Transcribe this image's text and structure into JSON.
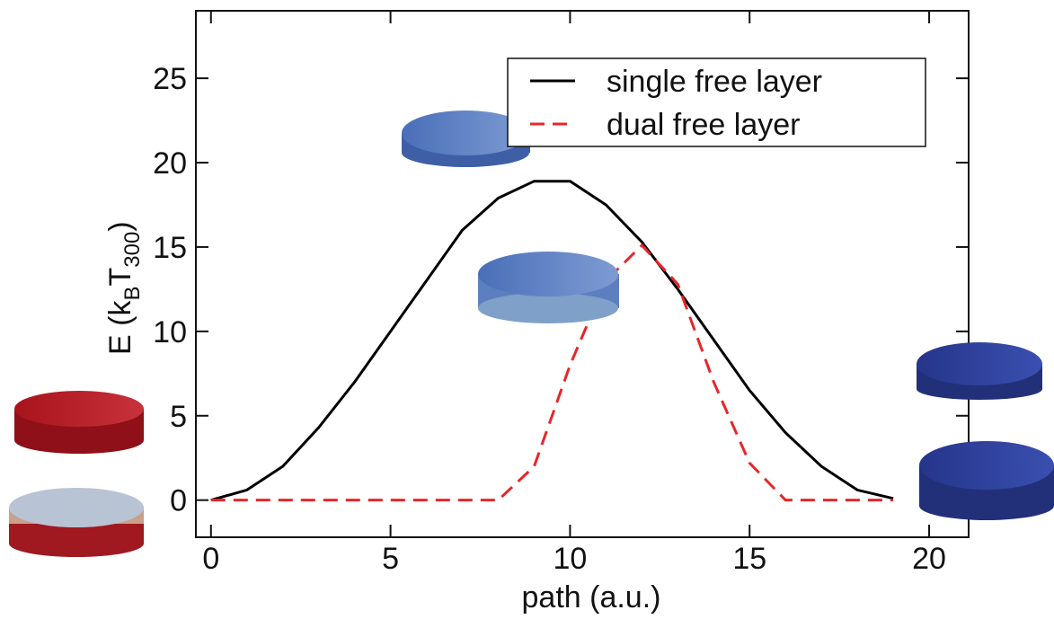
{
  "chart_data": {
    "type": "line",
    "xlabel": "path (a.u.)",
    "ylabel": [
      "E (k",
      "B",
      "T",
      "300",
      ")"
    ],
    "x": [
      0,
      1,
      2,
      3,
      4,
      5,
      6,
      7,
      8,
      9,
      10,
      11,
      12,
      13,
      14,
      15,
      16,
      17,
      18,
      19
    ],
    "series": [
      {
        "name": "single free layer",
        "color": "#000000",
        "dash": false,
        "values": [
          0,
          0.6,
          2,
          4.3,
          7,
          10,
          13,
          16,
          17.9,
          18.9,
          18.9,
          17.5,
          15.3,
          12.5,
          9.5,
          6.5,
          4,
          2,
          0.6,
          0.1
        ]
      },
      {
        "name": "dual free layer",
        "color": "#e8262a",
        "dash": true,
        "values": [
          0,
          0,
          0,
          0,
          0,
          0,
          0,
          0,
          0,
          2,
          8,
          13,
          15.1,
          12.8,
          7,
          2.2,
          0,
          0,
          0,
          0
        ]
      }
    ],
    "xlim": [
      -0.42,
      21.1
    ],
    "ylim": [
      -2.2,
      29
    ],
    "xticks": [
      0,
      5,
      10,
      15,
      20
    ],
    "yticks": [
      0,
      5,
      10,
      15,
      20,
      25
    ],
    "legend": "upper right"
  }
}
